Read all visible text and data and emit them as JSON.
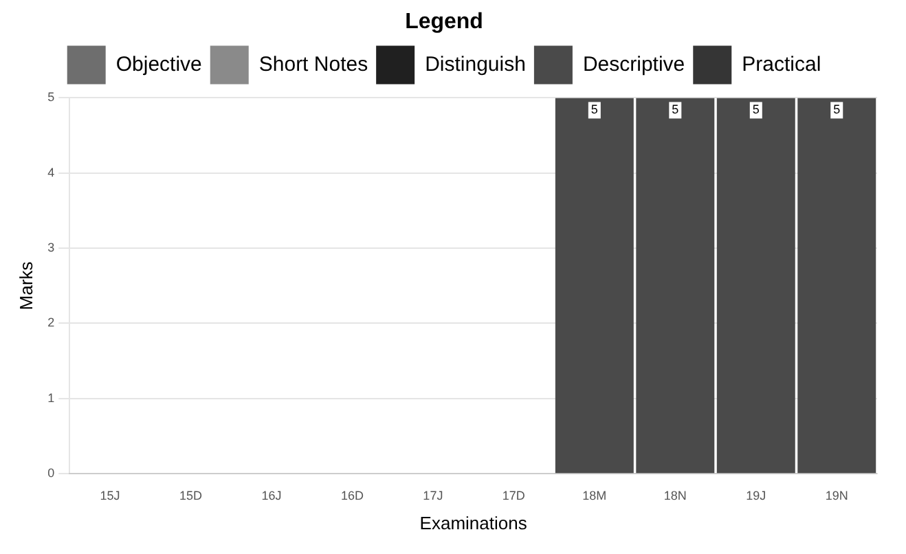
{
  "chart_data": {
    "type": "bar",
    "stacked": true,
    "xlabel": "Examinations",
    "ylabel": "Marks",
    "legend_title": "Legend",
    "legend": "top",
    "categories": [
      "15J",
      "15D",
      "16J",
      "16D",
      "17J",
      "17D",
      "18M",
      "18N",
      "19J",
      "19N"
    ],
    "series": [
      {
        "name": "Objective",
        "color": "#6e6e6e",
        "values": [
          null,
          null,
          null,
          null,
          null,
          null,
          null,
          null,
          null,
          null
        ]
      },
      {
        "name": "Short Notes",
        "color": "#8a8a8a",
        "values": [
          null,
          null,
          null,
          null,
          null,
          null,
          null,
          null,
          null,
          null
        ]
      },
      {
        "name": "Distinguish",
        "color": "#202020",
        "values": [
          null,
          null,
          null,
          null,
          null,
          null,
          null,
          null,
          null,
          null
        ]
      },
      {
        "name": "Descriptive",
        "color": "#4a4a4a",
        "values": [
          null,
          null,
          null,
          null,
          null,
          null,
          5,
          5,
          5,
          5
        ]
      },
      {
        "name": "Practical",
        "color": "#353535",
        "values": [
          null,
          null,
          null,
          null,
          null,
          null,
          null,
          null,
          null,
          null
        ]
      }
    ],
    "ylim": [
      0,
      5
    ],
    "yticks": [
      0,
      1,
      2,
      3,
      4,
      5
    ],
    "grid": "y",
    "data_labels": true
  }
}
